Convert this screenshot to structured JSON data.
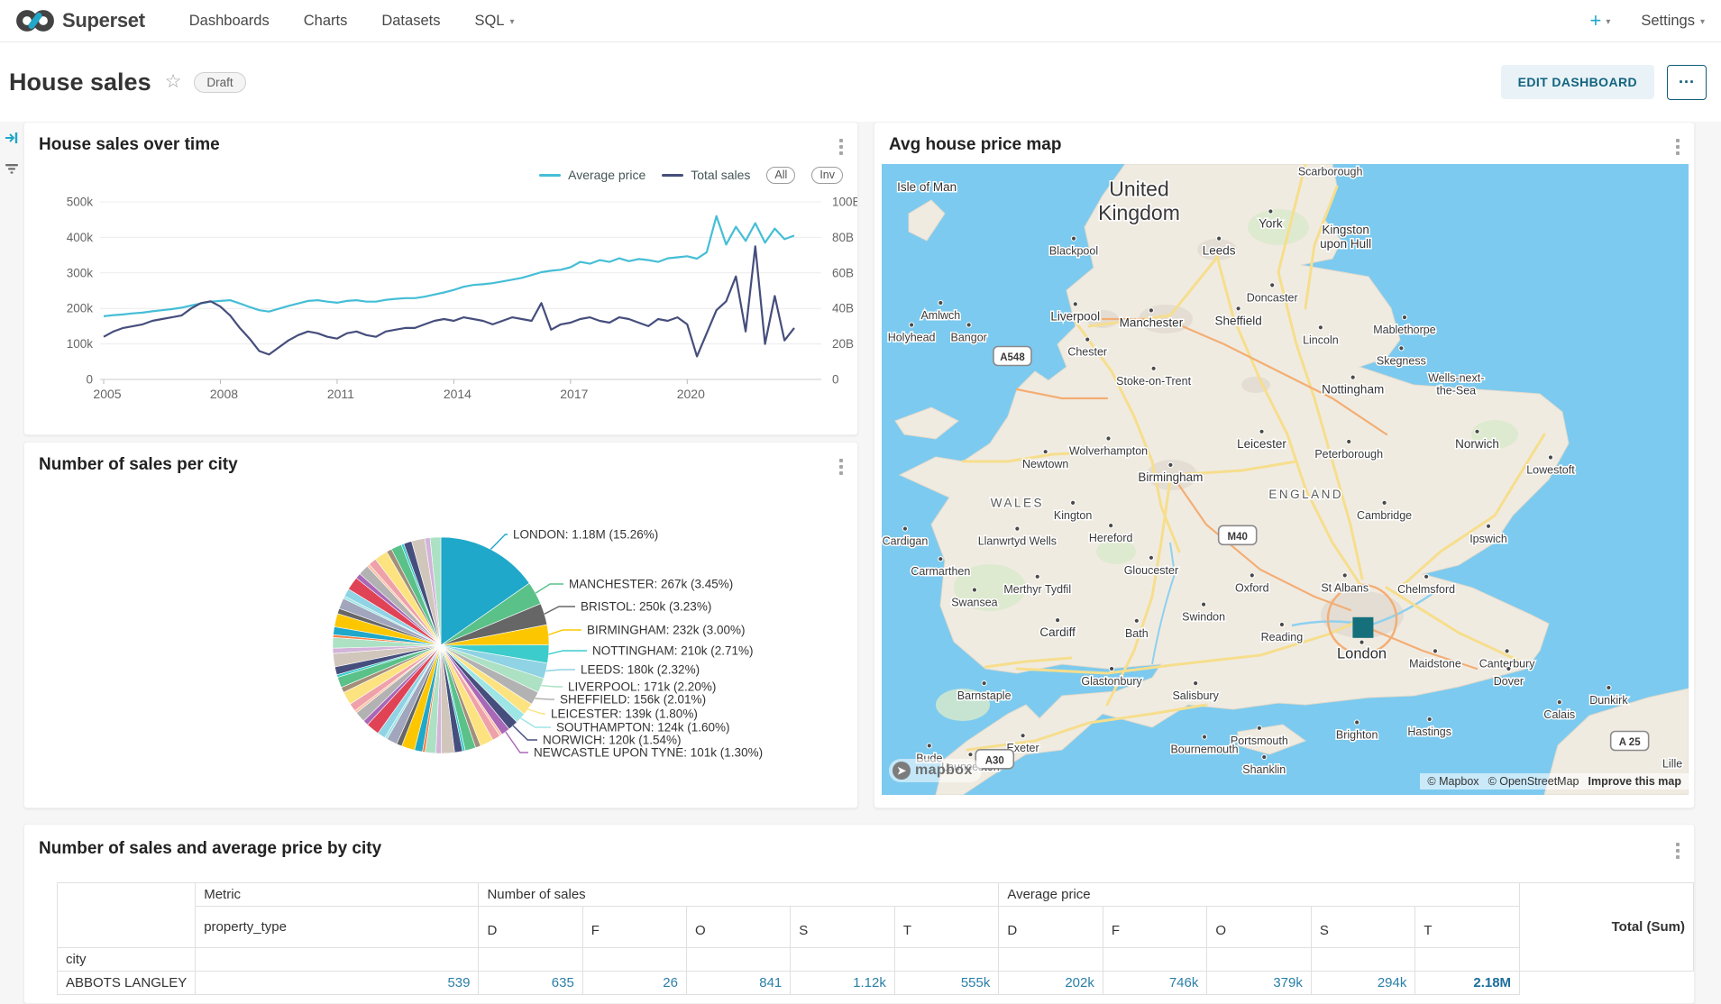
{
  "colors": {
    "accent": "#20A7C9",
    "avg_price_line": "#45BED6",
    "total_sales_line": "#454E7C",
    "sea": "#7CCAEF",
    "land": "#F0EBE1",
    "marker": "#16707C",
    "table_value": "#2A7FA8"
  },
  "navbar": {
    "brand": "Superset",
    "items": [
      {
        "label": "Dashboards"
      },
      {
        "label": "Charts"
      },
      {
        "label": "Datasets"
      },
      {
        "label": "SQL",
        "caret": true
      }
    ],
    "plus_label": "+",
    "settings_label": "Settings"
  },
  "header": {
    "title": "House sales",
    "status_badge": "Draft",
    "edit_button": "EDIT DASHBOARD",
    "more_button": "···"
  },
  "chart_data": [
    {
      "type": "line",
      "title": "House sales over time",
      "legend": [
        {
          "label": "Average price",
          "color": "#45BED6"
        },
        {
          "label": "Total sales",
          "color": "#454E7C"
        }
      ],
      "zoom_buttons": [
        "All",
        "Inv"
      ],
      "x_start": 2005,
      "x_end": 2022.75,
      "x_ticks": [
        2005,
        2008,
        2011,
        2014,
        2017,
        2020
      ],
      "left_axis": {
        "ticks": [
          "0",
          "100k",
          "200k",
          "300k",
          "400k",
          "500k"
        ],
        "max": 500
      },
      "right_axis": {
        "ticks": [
          "0",
          "20B",
          "40B",
          "60B",
          "80B",
          "100B"
        ],
        "max": 100
      },
      "series": [
        {
          "name": "Average price",
          "axis": "left",
          "color": "#45BED6",
          "y": [
            178,
            181,
            183,
            186,
            188,
            192,
            195,
            198,
            202,
            208,
            214,
            219,
            221,
            223,
            214,
            204,
            195,
            191,
            199,
            207,
            214,
            221,
            223,
            219,
            216,
            221,
            223,
            219,
            219,
            224,
            227,
            229,
            229,
            233,
            239,
            245,
            252,
            261,
            266,
            268,
            271,
            276,
            281,
            286,
            294,
            302,
            306,
            309,
            316,
            331,
            326,
            336,
            331,
            341,
            333,
            339,
            336,
            331,
            341,
            344,
            347,
            340,
            358,
            460,
            380,
            430,
            390,
            440,
            385,
            425,
            395,
            405
          ]
        },
        {
          "name": "Total sales",
          "axis": "right",
          "color": "#454E7C",
          "y": [
            24,
            27,
            29,
            30,
            31,
            33,
            34,
            35,
            36,
            40,
            43,
            44,
            41,
            36,
            29,
            23,
            16,
            14,
            18,
            22,
            25,
            27,
            26,
            24,
            23,
            26,
            27,
            25,
            24,
            27,
            28,
            29,
            29,
            31,
            33,
            34,
            33,
            35,
            34,
            33,
            31,
            33,
            35,
            34,
            33,
            43,
            28,
            31,
            32,
            34,
            35,
            33,
            32,
            35,
            34,
            32,
            30,
            34,
            33,
            35,
            31,
            13,
            26,
            39,
            44,
            58,
            27,
            75,
            20,
            47,
            22,
            29
          ]
        }
      ]
    },
    {
      "type": "pie",
      "title": "Number of sales per city",
      "slices": [
        {
          "label": "LONDON",
          "value": "1.18M",
          "pct": 15.26,
          "color": "#1FA8C9"
        },
        {
          "label": "MANCHESTER",
          "value": "267k",
          "pct": 3.45,
          "color": "#5AC189"
        },
        {
          "label": "BRISTOL",
          "value": "250k",
          "pct": 3.23,
          "color": "#666666"
        },
        {
          "label": "BIRMINGHAM",
          "value": "232k",
          "pct": 3.0,
          "color": "#FCC700"
        },
        {
          "label": "NOTTINGHAM",
          "value": "210k",
          "pct": 2.71,
          "color": "#3CCCCB"
        },
        {
          "label": "LEEDS",
          "value": "180k",
          "pct": 2.32,
          "color": "#8FD3E4"
        },
        {
          "label": "LIVERPOOL",
          "value": "171k",
          "pct": 2.2,
          "color": "#ACE1C4"
        },
        {
          "label": "SHEFFIELD",
          "value": "156k",
          "pct": 2.01,
          "color": "#B2B2B2"
        },
        {
          "label": "LEICESTER",
          "value": "139k",
          "pct": 1.8,
          "color": "#FDE380"
        },
        {
          "label": "SOUTHAMPTON",
          "value": "124k",
          "pct": 1.6,
          "color": "#9EE5E5"
        },
        {
          "label": "NORWICH",
          "value": "120k",
          "pct": 1.54,
          "color": "#454E7C"
        },
        {
          "label": "NEWCASTLE UPON TYNE",
          "value": "101k",
          "pct": 1.3,
          "color": "#A868B7"
        }
      ],
      "other_pct": 59.58,
      "other_palette": [
        "#FEC0A1",
        "#D1C6BC",
        "#A1A6BD",
        "#EFA1AA",
        "#D3B3DA",
        "#9EE5E5",
        "#FDE380",
        "#ACE1C4",
        "#8FD3E4",
        "#A38F79",
        "#FF7F44",
        "#E04355",
        "#5AC189",
        "#1FA8C9",
        "#A868B7",
        "#3CCCCB",
        "#FCC700",
        "#B2B2B2",
        "#454E7C",
        "#666666"
      ]
    },
    {
      "type": "map",
      "title": "Avg house price map",
      "marker": {
        "city": "London",
        "color": "#16707C",
        "x": 59.6,
        "y": 73.4
      },
      "labels": [
        {
          "n": "United\nKingdom",
          "x": 31.9,
          "y": 4.5,
          "s": 3
        },
        {
          "n": "Isle of Man",
          "x": 5.6,
          "y": 3.7,
          "s": 1
        },
        {
          "n": "Scarborough",
          "x": 55.6,
          "y": 1.2,
          "s": 0,
          "d": 1
        },
        {
          "n": "York",
          "x": 48.2,
          "y": 9.5,
          "s": 1,
          "d": 1
        },
        {
          "n": "Leeds",
          "x": 41.8,
          "y": 13.8,
          "s": 1,
          "d": 1
        },
        {
          "n": "Kingston\nupon Hull",
          "x": 57.5,
          "y": 10.5,
          "s": 1
        },
        {
          "n": "Blackpool",
          "x": 23.8,
          "y": 13.8,
          "s": 0,
          "d": 1
        },
        {
          "n": "Liverpool",
          "x": 24.0,
          "y": 24.2,
          "s": 1,
          "d": 1
        },
        {
          "n": "Manchester",
          "x": 33.4,
          "y": 25.2,
          "s": 1,
          "d": 1
        },
        {
          "n": "Sheffield",
          "x": 44.2,
          "y": 24.9,
          "s": 1,
          "d": 1
        },
        {
          "n": "Doncaster",
          "x": 48.4,
          "y": 21.2,
          "s": 0,
          "d": 1
        },
        {
          "n": "Mablethorpe",
          "x": 64.8,
          "y": 26.3,
          "s": 0,
          "d": 1
        },
        {
          "n": "Lincoln",
          "x": 54.4,
          "y": 27.9,
          "s": 0,
          "d": 1
        },
        {
          "n": "Skegness",
          "x": 64.4,
          "y": 31.2,
          "s": 0,
          "d": 1
        },
        {
          "n": "Holyhead",
          "x": 3.7,
          "y": 27.5,
          "s": 0,
          "d": 1
        },
        {
          "n": "Amlwch",
          "x": 7.3,
          "y": 24.0,
          "s": 0,
          "d": 1
        },
        {
          "n": "Bangor",
          "x": 10.8,
          "y": 27.5,
          "s": 0,
          "d": 1
        },
        {
          "n": "Chester",
          "x": 25.5,
          "y": 29.8,
          "s": 0,
          "d": 1
        },
        {
          "n": "Stoke-on-Trent",
          "x": 33.7,
          "y": 34.4,
          "s": 0,
          "d": 1
        },
        {
          "n": "Nottingham",
          "x": 58.4,
          "y": 35.8,
          "s": 1,
          "d": 1
        },
        {
          "n": "Wells-next-\nthe-Sea",
          "x": 71.2,
          "y": 33.9,
          "s": 0
        },
        {
          "n": "Norwich",
          "x": 73.8,
          "y": 44.4,
          "s": 1,
          "d": 1
        },
        {
          "n": "Lowestoft",
          "x": 82.9,
          "y": 48.5,
          "s": 0,
          "d": 1
        },
        {
          "n": "Wolverhampton",
          "x": 28.1,
          "y": 45.5,
          "s": 0,
          "d": 1
        },
        {
          "n": "Newtown",
          "x": 20.3,
          "y": 47.6,
          "s": 0,
          "d": 1
        },
        {
          "n": "Leicester",
          "x": 47.1,
          "y": 44.4,
          "s": 1,
          "d": 1
        },
        {
          "n": "Peterborough",
          "x": 57.9,
          "y": 46.0,
          "s": 0,
          "d": 1
        },
        {
          "n": "Birmingham",
          "x": 35.8,
          "y": 49.7,
          "s": 1,
          "d": 1
        },
        {
          "n": "WALES",
          "x": 16.8,
          "y": 53.8,
          "s": 2
        },
        {
          "n": "ENGLAND",
          "x": 52.6,
          "y": 52.4,
          "s": 2
        },
        {
          "n": "Kington",
          "x": 23.7,
          "y": 55.7,
          "s": 0,
          "d": 1
        },
        {
          "n": "Cambridge",
          "x": 62.3,
          "y": 55.7,
          "s": 0,
          "d": 1
        },
        {
          "n": "Cardigan",
          "x": 2.9,
          "y": 59.8,
          "s": 0,
          "d": 1
        },
        {
          "n": "Llanwrtyd Wells",
          "x": 16.8,
          "y": 59.8,
          "s": 0,
          "d": 1
        },
        {
          "n": "Hereford",
          "x": 28.4,
          "y": 59.3,
          "s": 0,
          "d": 1
        },
        {
          "n": "Gloucester",
          "x": 33.4,
          "y": 64.4,
          "s": 0,
          "d": 1
        },
        {
          "n": "Ipswich",
          "x": 75.2,
          "y": 59.4,
          "s": 0,
          "d": 1
        },
        {
          "n": "Carmarthen",
          "x": 7.3,
          "y": 64.6,
          "s": 0,
          "d": 1
        },
        {
          "n": "Merthyr Tydfil",
          "x": 19.3,
          "y": 67.4,
          "s": 0,
          "d": 1
        },
        {
          "n": "Swindon",
          "x": 39.9,
          "y": 71.8,
          "s": 0,
          "d": 1
        },
        {
          "n": "Oxford",
          "x": 45.9,
          "y": 67.2,
          "s": 0,
          "d": 1
        },
        {
          "n": "St Albans",
          "x": 57.4,
          "y": 67.2,
          "s": 0,
          "d": 1
        },
        {
          "n": "Chelmsford",
          "x": 67.5,
          "y": 67.4,
          "s": 0,
          "d": 1
        },
        {
          "n": "Swansea",
          "x": 11.5,
          "y": 69.5,
          "s": 0,
          "d": 1
        },
        {
          "n": "Cardiff",
          "x": 21.8,
          "y": 74.3,
          "s": 1,
          "d": 1
        },
        {
          "n": "Bath",
          "x": 31.6,
          "y": 74.4,
          "s": 0,
          "d": 1
        },
        {
          "n": "Reading",
          "x": 49.6,
          "y": 75.0,
          "s": 0,
          "d": 1
        },
        {
          "n": "London",
          "x": 59.5,
          "y": 77.8,
          "s": 4,
          "d": 1
        },
        {
          "n": "Maidstone",
          "x": 68.6,
          "y": 79.2,
          "s": 0,
          "d": 1
        },
        {
          "n": "Canterbury",
          "x": 77.5,
          "y": 79.2,
          "s": 0,
          "d": 1
        },
        {
          "n": "Barnstaple",
          "x": 12.7,
          "y": 84.3,
          "s": 0,
          "d": 1
        },
        {
          "n": "Glastonbury",
          "x": 28.5,
          "y": 82.0,
          "s": 0,
          "d": 1
        },
        {
          "n": "Salisbury",
          "x": 38.9,
          "y": 84.3,
          "s": 0,
          "d": 1
        },
        {
          "n": "Brighton",
          "x": 58.9,
          "y": 90.5,
          "s": 0,
          "d": 1
        },
        {
          "n": "Hastings",
          "x": 67.9,
          "y": 90.0,
          "s": 0,
          "d": 1
        },
        {
          "n": "Dover",
          "x": 77.7,
          "y": 82.0,
          "s": 0,
          "d": 1
        },
        {
          "n": "Calais",
          "x": 84.0,
          "y": 87.3,
          "s": 0,
          "d": 1
        },
        {
          "n": "Dunkirk",
          "x": 90.1,
          "y": 85.0,
          "s": 0,
          "d": 1
        },
        {
          "n": "Bude",
          "x": 5.9,
          "y": 94.2,
          "s": 0,
          "d": 1
        },
        {
          "n": "Launceston",
          "x": 11.0,
          "y": 95.6,
          "s": 0,
          "d": 1
        },
        {
          "n": "Exeter",
          "x": 17.5,
          "y": 92.6,
          "s": 0,
          "d": 1
        },
        {
          "n": "Portsmouth",
          "x": 46.8,
          "y": 91.4,
          "s": 0,
          "d": 1
        },
        {
          "n": "Bournemouth",
          "x": 40.0,
          "y": 92.8,
          "s": 0,
          "d": 1
        },
        {
          "n": "Shanklin",
          "x": 47.4,
          "y": 96.0,
          "s": 0,
          "d": 1
        },
        {
          "n": "Lille",
          "x": 98.0,
          "y": 95.1,
          "s": 0
        }
      ],
      "shields": [
        {
          "n": "A548",
          "x": 16.2,
          "y": 30.5
        },
        {
          "n": "M40",
          "x": 44.1,
          "y": 58.9
        },
        {
          "n": "A30",
          "x": 14.0,
          "y": 94.4
        },
        {
          "n": "A 25",
          "x": 92.7,
          "y": 91.5
        }
      ],
      "attribution": {
        "mapbox": "© Mapbox",
        "osm": "© OpenStreetMap",
        "improve": "Improve this map",
        "logo_word": "mapbox"
      }
    },
    {
      "type": "table",
      "title": "Number of sales and average price by city",
      "metric_label": "Metric",
      "property_type_label": "property_type",
      "city_label": "city",
      "group_headers": [
        "Number of sales",
        "Average price"
      ],
      "letter_columns": [
        "D",
        "F",
        "O",
        "S",
        "T"
      ],
      "total_label": "Total (Sum)",
      "rows": [
        {
          "city": "ABBOTS LANGLEY",
          "number_of_sales": [
            "539",
            "635",
            "26",
            "841",
            "1.12k"
          ],
          "average_price": [
            "555k",
            "202k",
            "746k",
            "379k",
            "294k"
          ],
          "total": "2.18M"
        }
      ]
    }
  ]
}
